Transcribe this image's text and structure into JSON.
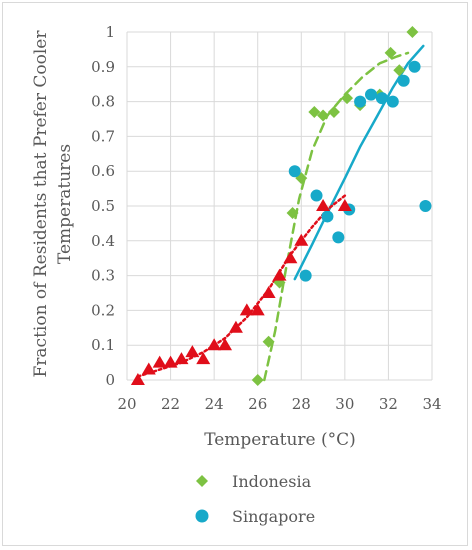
{
  "chart_data": {
    "type": "scatter",
    "title": "",
    "xlabel": "Temperature (°C)",
    "ylabel": [
      "Fraction of Residents that Prefer Cooler",
      "Temperatures"
    ],
    "xlim": [
      20,
      34
    ],
    "ylim": [
      0,
      1
    ],
    "x_ticks": [
      "20",
      "22",
      "24",
      "26",
      "28",
      "30",
      "32",
      "34"
    ],
    "y_ticks": [
      "0",
      "0.1",
      "0.2",
      "0.3",
      "0.4",
      "0.5",
      "0.6",
      "0.7",
      "0.8",
      "0.9",
      "1"
    ],
    "grid": true,
    "legend_position": "bottom",
    "series": [
      {
        "name": "Indonesia",
        "marker": "diamond",
        "color": "#7dc242",
        "points": [
          [
            26.0,
            0.0
          ],
          [
            26.5,
            0.11
          ],
          [
            27.0,
            0.28
          ],
          [
            27.6,
            0.48
          ],
          [
            28.0,
            0.58
          ],
          [
            28.6,
            0.77
          ],
          [
            29.0,
            0.76
          ],
          [
            29.5,
            0.77
          ],
          [
            30.1,
            0.81
          ],
          [
            30.7,
            0.79
          ],
          [
            31.6,
            0.82
          ],
          [
            32.1,
            0.94
          ],
          [
            32.5,
            0.89
          ],
          [
            33.1,
            1.0
          ]
        ],
        "trendline": {
          "style": "dashed",
          "points": [
            [
              26.3,
              0.0
            ],
            [
              26.8,
              0.14
            ],
            [
              27.3,
              0.32
            ],
            [
              27.9,
              0.52
            ],
            [
              28.5,
              0.66
            ],
            [
              29.2,
              0.76
            ],
            [
              30.0,
              0.82
            ],
            [
              30.8,
              0.87
            ],
            [
              31.6,
              0.91
            ],
            [
              32.4,
              0.93
            ],
            [
              32.9,
              0.94
            ]
          ]
        }
      },
      {
        "name": "Singapore",
        "marker": "circle",
        "color": "#17a9c9",
        "points": [
          [
            27.7,
            0.6
          ],
          [
            28.2,
            0.3
          ],
          [
            28.7,
            0.53
          ],
          [
            29.2,
            0.47
          ],
          [
            29.7,
            0.41
          ],
          [
            30.2,
            0.49
          ],
          [
            30.7,
            0.8
          ],
          [
            31.2,
            0.82
          ],
          [
            31.7,
            0.81
          ],
          [
            32.2,
            0.8
          ],
          [
            32.7,
            0.86
          ],
          [
            33.2,
            0.9
          ],
          [
            33.7,
            0.5
          ]
        ],
        "trendline": {
          "style": "solid",
          "points": [
            [
              27.7,
              0.29
            ],
            [
              28.5,
              0.39
            ],
            [
              29.2,
              0.48
            ],
            [
              30.0,
              0.58
            ],
            [
              30.7,
              0.67
            ],
            [
              31.5,
              0.76
            ],
            [
              32.2,
              0.84
            ],
            [
              32.9,
              0.91
            ],
            [
              33.6,
              0.96
            ]
          ]
        }
      },
      {
        "name": "",
        "marker": "triangle",
        "color": "#e00e1a",
        "points": [
          [
            20.5,
            0.0
          ],
          [
            21.0,
            0.03
          ],
          [
            21.5,
            0.05
          ],
          [
            22.0,
            0.05
          ],
          [
            22.5,
            0.06
          ],
          [
            23.0,
            0.08
          ],
          [
            23.5,
            0.06
          ],
          [
            24.0,
            0.1
          ],
          [
            24.5,
            0.1
          ],
          [
            25.0,
            0.15
          ],
          [
            25.5,
            0.2
          ],
          [
            26.0,
            0.2
          ],
          [
            26.5,
            0.25
          ],
          [
            27.0,
            0.3
          ],
          [
            27.5,
            0.35
          ],
          [
            28.0,
            0.4
          ],
          [
            29.0,
            0.5
          ],
          [
            30.0,
            0.5
          ]
        ],
        "trendline": {
          "style": "dotted",
          "points": [
            [
              20.5,
              0.01
            ],
            [
              21.5,
              0.03
            ],
            [
              22.5,
              0.05
            ],
            [
              23.5,
              0.08
            ],
            [
              24.5,
              0.12
            ],
            [
              25.5,
              0.18
            ],
            [
              26.5,
              0.26
            ],
            [
              27.5,
              0.36
            ],
            [
              28.5,
              0.44
            ],
            [
              29.2,
              0.49
            ],
            [
              30.0,
              0.53
            ]
          ]
        }
      }
    ]
  }
}
